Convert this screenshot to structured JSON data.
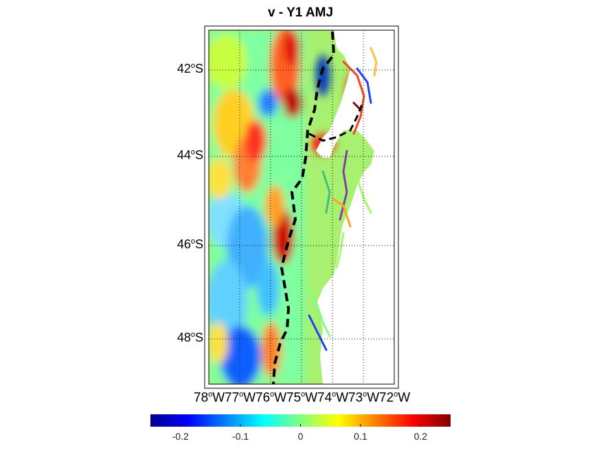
{
  "title": "v - Y1 AMJ",
  "lat_labels": [
    {
      "deg": "42",
      "hemi": "S"
    },
    {
      "deg": "44",
      "hemi": "S"
    },
    {
      "deg": "46",
      "hemi": "S"
    },
    {
      "deg": "48",
      "hemi": "S"
    }
  ],
  "lon_labels": [
    {
      "deg": "78",
      "hemi": "W"
    },
    {
      "deg": "77",
      "hemi": "W"
    },
    {
      "deg": "76",
      "hemi": "W"
    },
    {
      "deg": "75",
      "hemi": "W"
    },
    {
      "deg": "74",
      "hemi": "W"
    },
    {
      "deg": "73",
      "hemi": "W"
    },
    {
      "deg": "72",
      "hemi": "W"
    }
  ],
  "colorbar": {
    "ticks": [
      "-0.2",
      "-0.1",
      "0",
      "0.1",
      "0.2"
    ],
    "range": [
      -0.25,
      0.25
    ],
    "colormap": "jet"
  },
  "colors": {
    "land": "#ffffff",
    "dashed_contour": "#000000",
    "grid": "#000000"
  }
}
